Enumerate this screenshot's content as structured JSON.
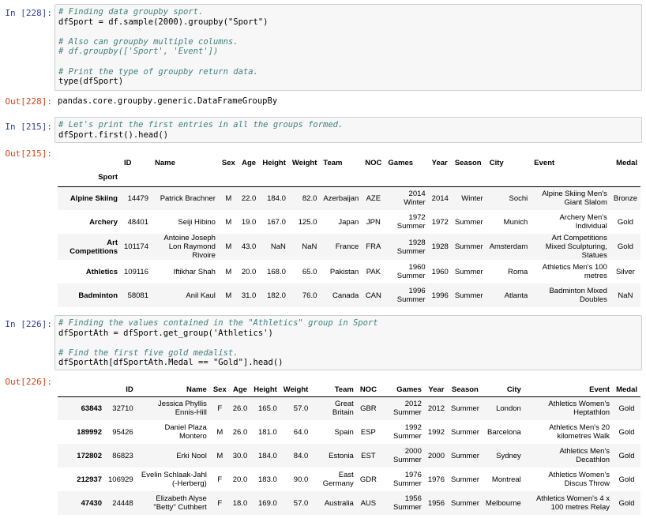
{
  "cells": {
    "c228": {
      "in_label": "In [228]:",
      "lines": [
        "# Finding data groupby sport.",
        "dfSport = df.sample(2000).groupby(\"Sport\")",
        "",
        "# Also can groupby multiple columns.",
        "# df.groupby(['Sport', 'Event'])",
        "",
        "# Print the type of groupby return data.",
        "type(dfSport)"
      ],
      "out_label": "Out[228]:",
      "output": "pandas.core.groupby.generic.DataFrameGroupBy"
    },
    "c215": {
      "in_label": "In [215]:",
      "lines": [
        "# Let's print the first entries in all the groups formed.",
        "dfSport.first().head()"
      ],
      "out_label": "Out[215]:",
      "table": {
        "columns": [
          "ID",
          "Name",
          "Sex",
          "Age",
          "Height",
          "Weight",
          "Team",
          "NOC",
          "Games",
          "Year",
          "Season",
          "City",
          "Event",
          "Medal"
        ],
        "index_name": "Sport",
        "rows": [
          {
            "idx": "Alpine Skiing",
            "cells": [
              "14479",
              "Patrick Brachner",
              "M",
              "22.0",
              "184.0",
              "82.0",
              "Azerbaijan",
              "AZE",
              "2014 Winter",
              "2014",
              "Winter",
              "Sochi",
              "Alpine Skiing Men's Giant Slalom",
              "Bronze"
            ]
          },
          {
            "idx": "Archery",
            "cells": [
              "48401",
              "Seiji Hibino",
              "M",
              "19.0",
              "167.0",
              "125.0",
              "Japan",
              "JPN",
              "1972 Summer",
              "1972",
              "Summer",
              "Munich",
              "Archery Men's Individual",
              "Gold"
            ]
          },
          {
            "idx": "Art Competitions",
            "cells": [
              "101174",
              "Antoine Joseph Lon Raymond Rivoire",
              "M",
              "43.0",
              "NaN",
              "NaN",
              "France",
              "FRA",
              "1928 Summer",
              "1928",
              "Summer",
              "Amsterdam",
              "Art Competitions Mixed Sculpturing, Statues",
              "Gold"
            ]
          },
          {
            "idx": "Athletics",
            "cells": [
              "109116",
              "Iftikhar Shah",
              "M",
              "20.0",
              "168.0",
              "65.0",
              "Pakistan",
              "PAK",
              "1960 Summer",
              "1960",
              "Summer",
              "Roma",
              "Athletics Men's 100 metres",
              "Silver"
            ]
          },
          {
            "idx": "Badminton",
            "cells": [
              "58081",
              "Anil Kaul",
              "M",
              "31.0",
              "182.0",
              "76.0",
              "Canada",
              "CAN",
              "1996 Summer",
              "1996",
              "Summer",
              "Atlanta",
              "Badminton Mixed Doubles",
              "NaN"
            ]
          }
        ]
      }
    },
    "c226": {
      "in_label": "In [226]:",
      "lines": [
        "# Finding the values contained in the \"Athletics\" group in Sport",
        "dfSportAth = dfSport.get_group('Athletics')",
        "",
        "# Find the first five gold medalist.",
        "dfSportAth[dfSportAth.Medal == \"Gold\"].head()"
      ],
      "out_label": "Out[226]:",
      "table": {
        "columns": [
          "ID",
          "Name",
          "Sex",
          "Age",
          "Height",
          "Weight",
          "Team",
          "NOC",
          "Games",
          "Year",
          "Season",
          "City",
          "Event",
          "Medal"
        ],
        "rows": [
          {
            "idx": "63843",
            "cells": [
              "32710",
              "Jessica Phyllis Ennis-Hill",
              "F",
              "26.0",
              "165.0",
              "57.0",
              "Great Britain",
              "GBR",
              "2012 Summer",
              "2012",
              "Summer",
              "London",
              "Athletics Women's Heptathlon",
              "Gold"
            ]
          },
          {
            "idx": "189992",
            "cells": [
              "95426",
              "Daniel Plaza Montero",
              "M",
              "26.0",
              "181.0",
              "64.0",
              "Spain",
              "ESP",
              "1992 Summer",
              "1992",
              "Summer",
              "Barcelona",
              "Athletics Men's 20 kilometres Walk",
              "Gold"
            ]
          },
          {
            "idx": "172802",
            "cells": [
              "86823",
              "Erki Nool",
              "M",
              "30.0",
              "184.0",
              "84.0",
              "Estonia",
              "EST",
              "2000 Summer",
              "2000",
              "Summer",
              "Sydney",
              "Athletics Men's Decathlon",
              "Gold"
            ]
          },
          {
            "idx": "212937",
            "cells": [
              "106929",
              "Evelin Schlaak-Jahl (-Herberg)",
              "F",
              "20.0",
              "183.0",
              "90.0",
              "East Germany",
              "GDR",
              "1976 Summer",
              "1976",
              "Summer",
              "Montreal",
              "Athletics Women's Discus Throw",
              "Gold"
            ]
          },
          {
            "idx": "47430",
            "cells": [
              "24448",
              "Elizabeth Alyse \"Betty\" Cuthbert",
              "F",
              "18.0",
              "169.0",
              "57.0",
              "Australia",
              "AUS",
              "1956 Summer",
              "1956",
              "Summer",
              "Melbourne",
              "Athletics Women's 4 x 100 metres Relay",
              "Gold"
            ]
          }
        ]
      }
    }
  }
}
